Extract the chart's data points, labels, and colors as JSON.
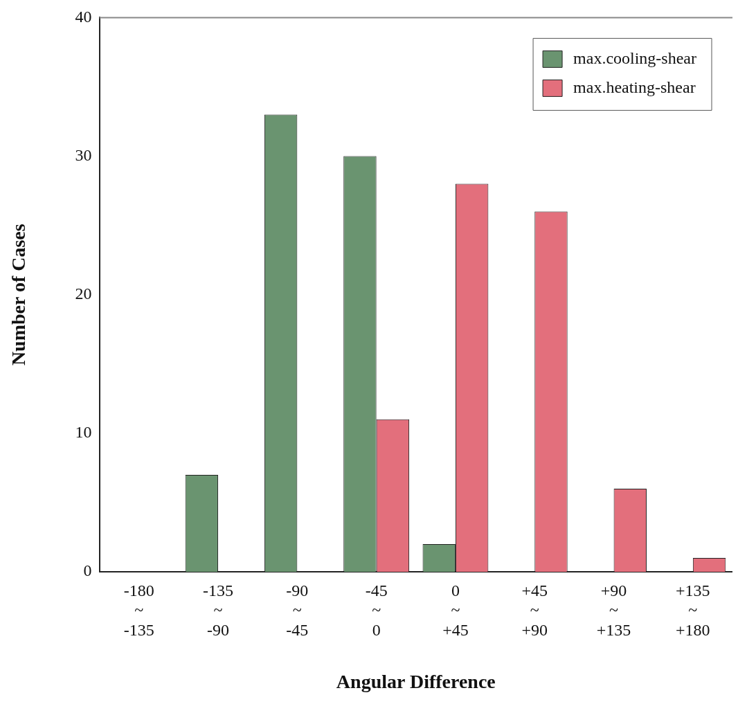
{
  "chart_data": {
    "type": "bar",
    "xlabel": "Angular Difference",
    "ylabel": "Number of Cases",
    "categories": [
      "-180\n~\n-135",
      "-135\n~\n-90",
      "-90\n~\n-45",
      "-45\n~\n0",
      "0\n~\n+45",
      "+45\n~\n+90",
      "+90\n~\n+135",
      "+135\n~\n+180"
    ],
    "series": [
      {
        "name": "max.cooling-shear",
        "color": "#6a9470",
        "values": [
          0,
          7,
          33,
          30,
          2,
          0,
          0,
          0
        ]
      },
      {
        "name": "max.heating-shear",
        "color": "#e36f7c",
        "values": [
          0,
          0,
          0,
          11,
          28,
          26,
          6,
          1
        ]
      }
    ],
    "ylim": [
      0,
      40
    ],
    "yticks": [
      0,
      10,
      20,
      30,
      40
    ],
    "grid": false,
    "legend": "top right"
  }
}
